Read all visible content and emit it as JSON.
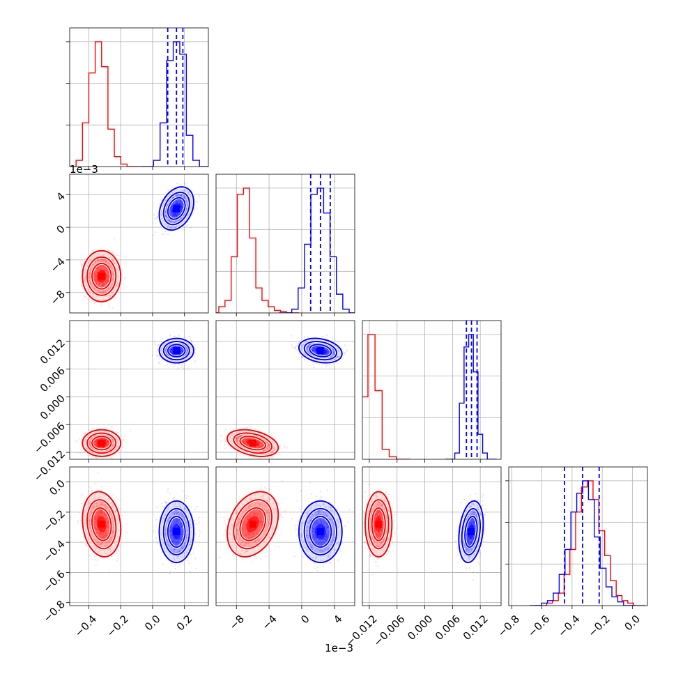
{
  "chart_data": {
    "type": "scatter",
    "kind": "corner-plot",
    "grid": true,
    "colors": {
      "red_series": "#ff0000",
      "blue_series": "#0000ff"
    },
    "params": [
      {
        "index": 0,
        "range": [
          -0.52,
          0.35
        ],
        "ticks": [
          -0.4,
          -0.2,
          0.0,
          0.2
        ],
        "tick_labels": [
          "−0.4",
          "−0.2",
          "0.0",
          "0.2"
        ],
        "offset": ""
      },
      {
        "index": 1,
        "range": [
          -0.0105,
          0.0065
        ],
        "ticks": [
          -0.008,
          -0.004,
          0.0,
          0.004
        ],
        "tick_labels": [
          "−8",
          "−4",
          "0",
          "4"
        ],
        "offset": "1e−3"
      },
      {
        "index": 2,
        "range": [
          -0.0135,
          0.0165
        ],
        "ticks": [
          -0.012,
          -0.006,
          0.0,
          0.006,
          0.012
        ],
        "tick_labels": [
          "−0.012",
          "−0.006",
          "0.000",
          "0.006",
          "0.012"
        ],
        "offset": ""
      },
      {
        "index": 3,
        "range": [
          -0.82,
          0.1
        ],
        "ticks": [
          -0.8,
          -0.6,
          -0.4,
          -0.2,
          0.0
        ],
        "tick_labels": [
          "−0.8",
          "−0.6",
          "−0.4",
          "−0.2",
          "0.0"
        ],
        "offset": ""
      }
    ],
    "series": [
      {
        "color": "#ff0000",
        "mean": [
          -0.32,
          -0.006,
          -0.01,
          -0.28
        ],
        "std": [
          0.05,
          0.0013,
          0.0012,
          0.09
        ],
        "corr": {
          "0-1": 0.0,
          "0-2": 0.0,
          "0-3": -0.15,
          "1-2": -0.35,
          "1-3": 0.3,
          "2-3": 0.0
        },
        "hist": [
          [
            0.05,
            0.35,
            0.75,
            1.0,
            0.8,
            0.3,
            0.08,
            0.02
          ],
          [
            0.05,
            0.1,
            0.45,
            0.95,
            1.0,
            0.6,
            0.2,
            0.1,
            0.05,
            0.02,
            0.01
          ],
          [
            0.5,
            1.0,
            0.55,
            0.08,
            0.02
          ],
          [
            0.02,
            0.04,
            0.1,
            0.25,
            0.45,
            0.75,
            0.95,
            1.0,
            0.85,
            0.6,
            0.4,
            0.2,
            0.08,
            0.04,
            0.02
          ]
        ]
      },
      {
        "color": "#0000ff",
        "mean": [
          0.15,
          0.0023,
          0.01,
          -0.33
        ],
        "std": [
          0.045,
          0.0011,
          0.0011,
          0.085
        ],
        "corr": {
          "0-1": 0.3,
          "0-2": 0.0,
          "0-3": 0.0,
          "1-2": -0.25,
          "1-3": 0.0,
          "2-3": 0.25
        },
        "hist": [
          [
            0.05,
            0.35,
            0.85,
            1.0,
            0.9,
            0.25,
            0.05
          ],
          [
            0.03,
            0.2,
            0.55,
            0.95,
            1.0,
            0.8,
            0.45,
            0.15,
            0.03
          ],
          [
            0.05,
            0.45,
            0.9,
            1.0,
            0.7,
            0.2,
            0.05
          ],
          [
            0.02,
            0.04,
            0.1,
            0.25,
            0.45,
            0.75,
            0.9,
            1.0,
            0.85,
            0.55,
            0.3,
            0.15,
            0.07,
            0.03
          ]
        ],
        "quantile_lines": [
          [
            0.095,
            0.15,
            0.19
          ],
          [
            0.0011,
            0.0023,
            0.0035
          ],
          [
            0.009,
            0.0101,
            0.0113
          ],
          [
            -0.45,
            -0.33,
            -0.22
          ]
        ]
      }
    ]
  }
}
